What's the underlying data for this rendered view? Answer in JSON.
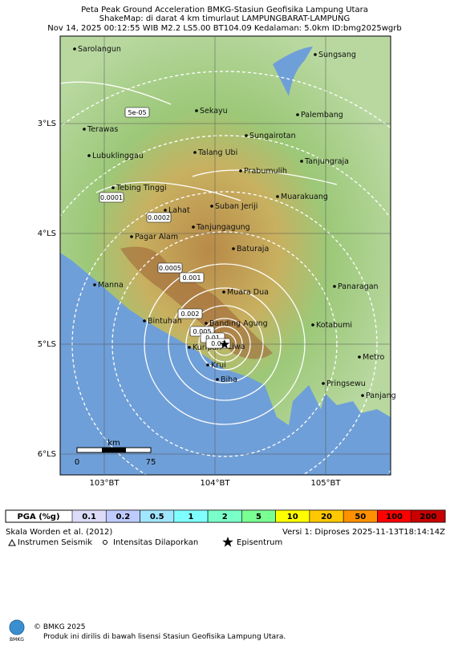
{
  "header": {
    "title": "Peta Peak Ground Acceleration BMKG-Stasiun Geofisika Lampung Utara",
    "subtitle": "ShakeMap: di darat 4 km timurlaut LAMPUNGBARAT-LAMPUNG",
    "info": "Nov 14, 2025 00:12:55 WIB M2.2 LS5.00 BT104.09 Kedalaman: 5.0km ID:bmg2025wgrb"
  },
  "map": {
    "lat_labels": [
      "3°LS",
      "4°LS",
      "5°LS",
      "6°LS"
    ],
    "lon_labels": [
      "103°BT",
      "104°BT",
      "105°BT"
    ],
    "cities": [
      "Sarolangun",
      "Sungsang",
      "Sekayu",
      "Palembang",
      "Terawas",
      "Sungairotan",
      "Talang Ubi",
      "Lubuklinggau",
      "Tanjungraja",
      "Prabumulih",
      "Tebing Tinggi",
      "Muarakuang",
      "Lahat",
      "Suban Jeriji",
      "Tanjungagung",
      "Pagar Alam",
      "Baturaja",
      "Manna",
      "Muara Dua",
      "Panaragan",
      "Bintuhan",
      "Banding Agung",
      "Kotabumi",
      "Kuripan",
      "Liwa",
      "Metro",
      "Krui",
      "Pringsewu",
      "Biha",
      "Panjang"
    ],
    "contour_labels": [
      "5e-05",
      "0.0001",
      "0.0002",
      "0.0005",
      "0.001",
      "0.002",
      "0.005",
      "0.01",
      "0.02"
    ],
    "scale": {
      "unit": "km",
      "min": "0",
      "max": "75"
    }
  },
  "legend": {
    "label": "PGA (%g)",
    "levels": [
      "0.1",
      "0.2",
      "0.5",
      "1",
      "2",
      "5",
      "10",
      "20",
      "50",
      "100",
      "200"
    ]
  },
  "footer": {
    "scale_ref": "Skala Worden et al. (2012)",
    "version": "Versi 1: Diproses 2025-11-13T18:14:14Z",
    "symbols": [
      "Instrumen Seismik",
      "Intensitas Dilaporkan",
      "Episentrum"
    ],
    "logo": "BMKG",
    "copyright": "© BMKG 2025",
    "license": "Produk ini dirilis di bawah lisensi Stasiun Geofisika Lampung Utara."
  }
}
